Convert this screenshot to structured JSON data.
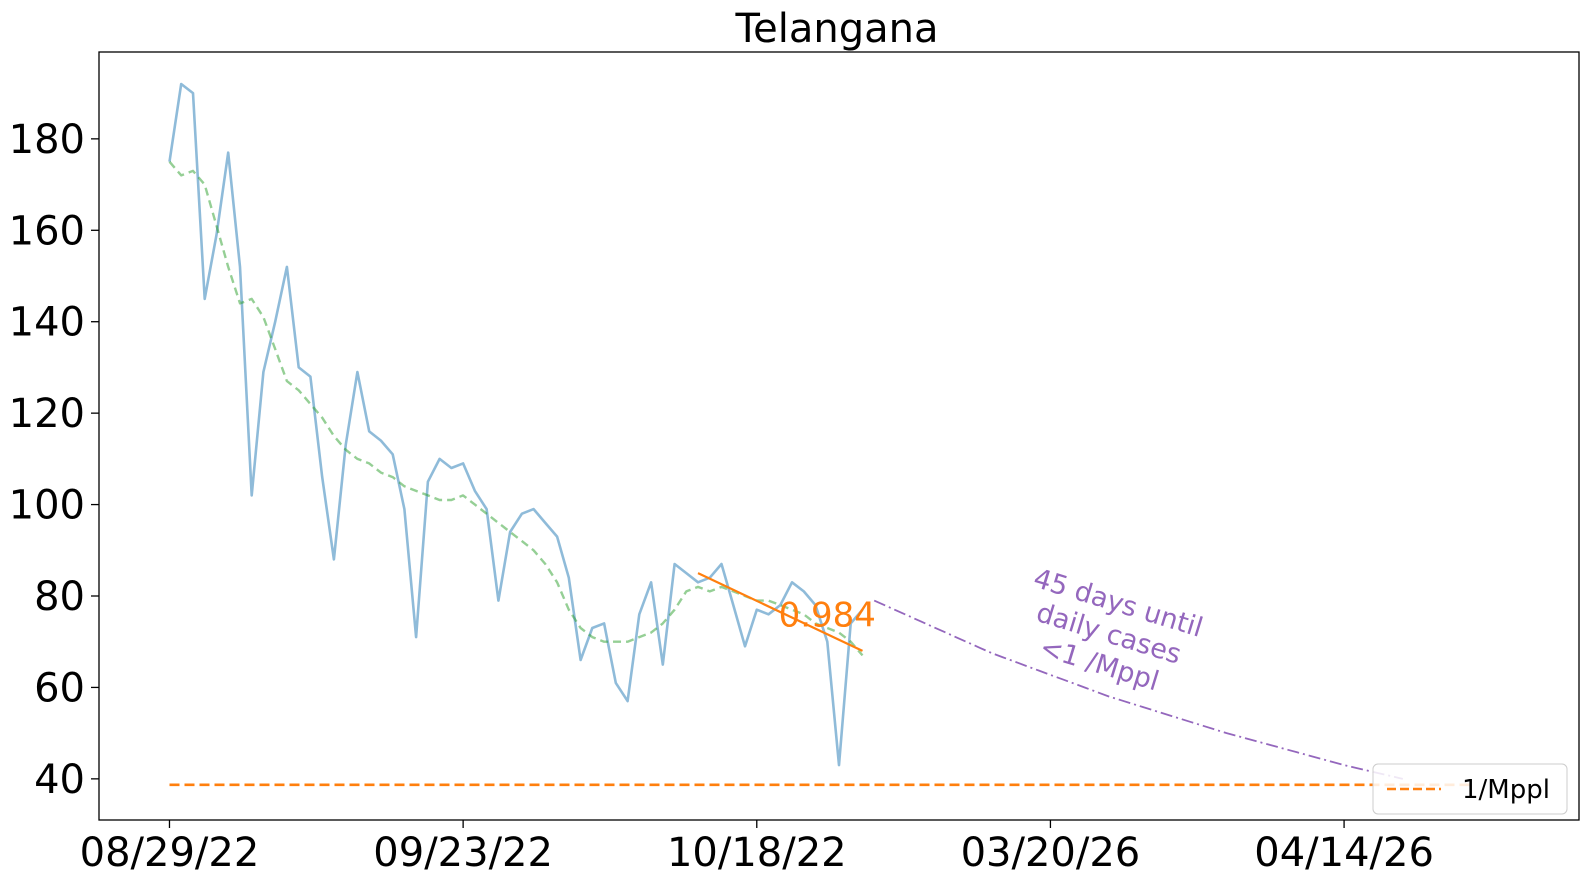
{
  "chart_data": {
    "type": "line",
    "title": "Telangana",
    "xlabel": "",
    "ylabel": "",
    "ylim": [
      31,
      199
    ],
    "yticks": [
      40,
      60,
      80,
      100,
      120,
      140,
      160,
      180
    ],
    "x_index_range": [
      -6,
      120
    ],
    "xticks": [
      {
        "index": 0,
        "label": "08/29/22"
      },
      {
        "index": 25,
        "label": "09/23/22"
      },
      {
        "index": 50,
        "label": "10/18/22"
      },
      {
        "index": 75,
        "label": "03/20/26"
      },
      {
        "index": 100,
        "label": "04/14/26"
      }
    ],
    "grid": false,
    "legend": {
      "placement": "lower-right",
      "entries": [
        {
          "label": "1/Mppl",
          "color": "#ff7f0e",
          "style": "dashed"
        }
      ]
    },
    "series": [
      {
        "kind": "daily",
        "color": "#1f77b4",
        "values": [
          175,
          192,
          190,
          145,
          159,
          177,
          152,
          102,
          129,
          140,
          152,
          130,
          128,
          106,
          88,
          113,
          129,
          116,
          114,
          111,
          99,
          71,
          105,
          110,
          108,
          109,
          103,
          99,
          79,
          94,
          98,
          99,
          96,
          93,
          84,
          66,
          73,
          74,
          61,
          57,
          76,
          83,
          65,
          87,
          85,
          83,
          84,
          87,
          78,
          69,
          77,
          76,
          78,
          83,
          81,
          78,
          70,
          43,
          74,
          77
        ]
      },
      {
        "kind": "smoothed",
        "color": "#2ca02c",
        "style": "dashed",
        "values": [
          175,
          172,
          173,
          170,
          161,
          152,
          144,
          145,
          141,
          134,
          127,
          125,
          122,
          119,
          115,
          112,
          110,
          109,
          107,
          106,
          104,
          103,
          102,
          101,
          101,
          102,
          100,
          98,
          96,
          94,
          92,
          90,
          87,
          83,
          77,
          73,
          71,
          70,
          70,
          70,
          71,
          72,
          74,
          77,
          81,
          82,
          81,
          82,
          81,
          80,
          79,
          79,
          78,
          77,
          76,
          74,
          73,
          72,
          70,
          67
        ]
      },
      {
        "kind": "trend",
        "color": "#ff7f0e",
        "x": [
          45,
          59
        ],
        "values": [
          85,
          68
        ]
      },
      {
        "kind": "projection",
        "color": "#9467bd",
        "style": "dashdot",
        "x": [
          60,
          70,
          80,
          90,
          100,
          105
        ],
        "values": [
          79,
          67.5,
          58,
          50,
          43,
          40
        ]
      },
      {
        "kind": "threshold",
        "name": "1/Mppl",
        "color": "#ff7f0e",
        "style": "dashed",
        "x": [
          0,
          111
        ],
        "values": [
          38.7,
          38.7
        ]
      }
    ],
    "annotations": [
      {
        "text": "0.984",
        "x": 56,
        "y": 76,
        "color": "#ff7f0e"
      },
      {
        "lines": [
          "45 days until",
          "daily cases",
          "<1 /Mppl"
        ],
        "x": 80,
        "y": 72,
        "color": "#9467bd",
        "rotation": 17
      }
    ]
  }
}
